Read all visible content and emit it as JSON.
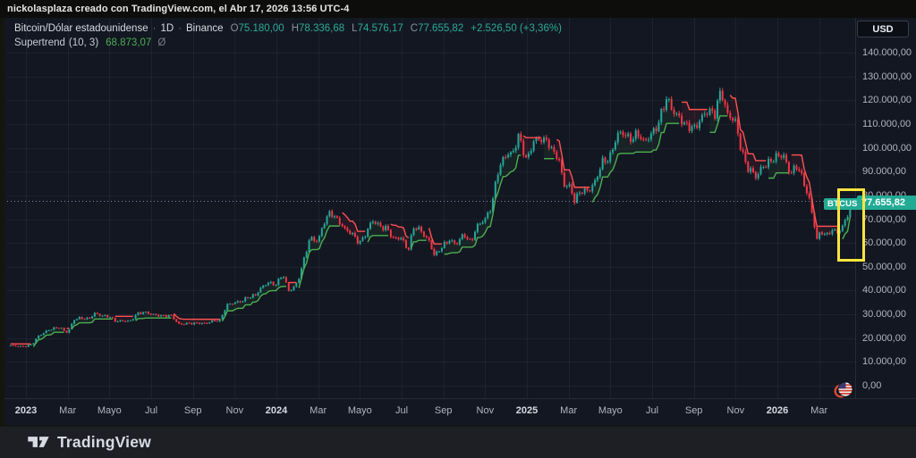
{
  "attribution": {
    "text": "nickolasplaza creado con TradingView.com, el Abr 17, 2026 13:56 UTC-4"
  },
  "legend": {
    "symbol_title": "Bitcoin/Dólar estadounidense",
    "sep": "·",
    "timeframe": "1D",
    "exchange": "Binance",
    "ohlc": {
      "o_label": "O",
      "o": "75.180,00",
      "h_label": "H",
      "h": "78.336,68",
      "l_label": "L",
      "l": "74.576,17",
      "c_label": "C",
      "c": "77.655,82"
    },
    "change": "+2.526,50 (+3,36%)",
    "indicator": {
      "name": "Supertrend",
      "params": "(10, 3)",
      "value": "68.873,07",
      "icon": "Ø"
    }
  },
  "currency_button": {
    "label": "USD"
  },
  "price_badge": {
    "label": "77.655,82"
  },
  "symbol_tag": {
    "label": "BTCUSD"
  },
  "footer": {
    "brand": "TradingView"
  },
  "colors": {
    "chart_bg": "#131722",
    "candle_up": "#26a69a",
    "candle_down": "#f23645",
    "supertrend_up": "#4caf50",
    "supertrend_down": "#ff5252",
    "badge_bg": "#22ab94",
    "highlight": "#ffe53d",
    "grid": "rgba(170,180,200,0.07)",
    "price_line": "rgba(160,150,190,0.85)",
    "axis_text": "#b2b5be"
  },
  "chart_data": {
    "type": "line",
    "subtype": "candlestick-with-supertrend",
    "symbol": "BTCUSD",
    "timeframe": "1D",
    "exchange": "Binance",
    "current_price": 77655.82,
    "supertrend_value": 68873.07,
    "supertrend_state": "up",
    "ylim": [
      0,
      147000
    ],
    "y_ticks": [
      {
        "label": "140.000,00",
        "value": 140000
      },
      {
        "label": "130.000,00",
        "value": 130000
      },
      {
        "label": "120.000,00",
        "value": 120000
      },
      {
        "label": "110.000,00",
        "value": 110000
      },
      {
        "label": "100.000,00",
        "value": 100000
      },
      {
        "label": "90.000,00",
        "value": 90000
      },
      {
        "label": "80.000,00",
        "value": 80000
      },
      {
        "label": "70.000,00",
        "value": 70000
      },
      {
        "label": "60.000,00",
        "value": 60000
      },
      {
        "label": "50.000,00",
        "value": 50000
      },
      {
        "label": "40.000,00",
        "value": 40000
      },
      {
        "label": "30.000,00",
        "value": 30000
      },
      {
        "label": "20.000,00",
        "value": 20000
      },
      {
        "label": "10.000,00",
        "value": 10000
      },
      {
        "label": "0,00",
        "value": 0
      }
    ],
    "x_ticks": [
      {
        "label": "2023",
        "t": 0,
        "bold": true
      },
      {
        "label": "Mar",
        "t": 2,
        "bold": false
      },
      {
        "label": "Mayo",
        "t": 4,
        "bold": false
      },
      {
        "label": "Jul",
        "t": 6,
        "bold": false
      },
      {
        "label": "Sep",
        "t": 8,
        "bold": false
      },
      {
        "label": "Nov",
        "t": 10,
        "bold": false
      },
      {
        "label": "2024",
        "t": 12,
        "bold": true
      },
      {
        "label": "Mar",
        "t": 14,
        "bold": false
      },
      {
        "label": "Mayo",
        "t": 16,
        "bold": false
      },
      {
        "label": "Jul",
        "t": 18,
        "bold": false
      },
      {
        "label": "Sep",
        "t": 20,
        "bold": false
      },
      {
        "label": "Nov",
        "t": 22,
        "bold": false
      },
      {
        "label": "2025",
        "t": 24,
        "bold": true
      },
      {
        "label": "Mar",
        "t": 26,
        "bold": false
      },
      {
        "label": "Mayo",
        "t": 28,
        "bold": false
      },
      {
        "label": "Jul",
        "t": 30,
        "bold": false
      },
      {
        "label": "Sep",
        "t": 32,
        "bold": false
      },
      {
        "label": "Nov",
        "t": 34,
        "bold": false
      },
      {
        "label": "2026",
        "t": 36,
        "bold": true
      },
      {
        "label": "Mar",
        "t": 38,
        "bold": false
      }
    ],
    "price_path": [
      [
        -0.8,
        16800
      ],
      [
        -0.4,
        16650
      ],
      [
        0,
        16600
      ],
      [
        0.3,
        17200
      ],
      [
        0.6,
        21000
      ],
      [
        1,
        23200
      ],
      [
        1.3,
        23800
      ],
      [
        1.6,
        24600
      ],
      [
        2,
        22400
      ],
      [
        2.3,
        27600
      ],
      [
        2.6,
        28300
      ],
      [
        3,
        28400
      ],
      [
        3.3,
        30300
      ],
      [
        3.6,
        29200
      ],
      [
        4,
        29400
      ],
      [
        4.3,
        27100
      ],
      [
        4.6,
        26900
      ],
      [
        5,
        27300
      ],
      [
        5.3,
        30400
      ],
      [
        5.6,
        30600
      ],
      [
        6,
        30200
      ],
      [
        6.3,
        29900
      ],
      [
        6.6,
        29200
      ],
      [
        7,
        29300
      ],
      [
        7.3,
        26100
      ],
      [
        7.6,
        26000
      ],
      [
        8,
        26000
      ],
      [
        8.3,
        26600
      ],
      [
        8.6,
        26200
      ],
      [
        9,
        27000
      ],
      [
        9.3,
        27600
      ],
      [
        9.6,
        34000
      ],
      [
        10,
        34600
      ],
      [
        10.3,
        35400
      ],
      [
        10.6,
        37400
      ],
      [
        11,
        37800
      ],
      [
        11.3,
        41300
      ],
      [
        11.6,
        43800
      ],
      [
        12,
        42300
      ],
      [
        12.3,
        46700
      ],
      [
        12.6,
        40000
      ],
      [
        13,
        43100
      ],
      [
        13.3,
        51800
      ],
      [
        13.6,
        62500
      ],
      [
        14,
        61200
      ],
      [
        14.3,
        68300
      ],
      [
        14.6,
        73100
      ],
      [
        15,
        69600
      ],
      [
        15.3,
        64900
      ],
      [
        15.6,
        63800
      ],
      [
        16,
        60600
      ],
      [
        16.3,
        63900
      ],
      [
        16.6,
        69000
      ],
      [
        17,
        67500
      ],
      [
        17.3,
        66200
      ],
      [
        17.6,
        61000
      ],
      [
        18,
        62700
      ],
      [
        18.3,
        57000
      ],
      [
        18.6,
        66500
      ],
      [
        19,
        64600
      ],
      [
        19.3,
        61400
      ],
      [
        19.6,
        54000
      ],
      [
        20,
        59000
      ],
      [
        20.3,
        62000
      ],
      [
        20.6,
        59100
      ],
      [
        21,
        63300
      ],
      [
        21.3,
        60800
      ],
      [
        21.6,
        67000
      ],
      [
        22,
        69400
      ],
      [
        22.3,
        75600
      ],
      [
        22.6,
        90500
      ],
      [
        23,
        96400
      ],
      [
        23.3,
        97500
      ],
      [
        23.6,
        106100
      ],
      [
        24,
        93400
      ],
      [
        24.3,
        102300
      ],
      [
        24.6,
        104800
      ],
      [
        25,
        102400
      ],
      [
        25.2,
        97700
      ],
      [
        25.5,
        96600
      ],
      [
        25.8,
        84700
      ],
      [
        26,
        84400
      ],
      [
        26.3,
        76900
      ],
      [
        26.6,
        82600
      ],
      [
        27,
        82500
      ],
      [
        27.3,
        85200
      ],
      [
        27.6,
        94200
      ],
      [
        28,
        97000
      ],
      [
        28.3,
        104200
      ],
      [
        28.6,
        106000
      ],
      [
        29,
        104600
      ],
      [
        29.3,
        105700
      ],
      [
        29.6,
        101600
      ],
      [
        30,
        107200
      ],
      [
        30.3,
        110200
      ],
      [
        30.7,
        120100
      ],
      [
        31,
        116500
      ],
      [
        31.3,
        113300
      ],
      [
        31.6,
        108200
      ],
      [
        32,
        108500
      ],
      [
        32.3,
        112600
      ],
      [
        32.6,
        114400
      ],
      [
        33,
        114100
      ],
      [
        33.3,
        126000
      ],
      [
        33.6,
        113500
      ],
      [
        34,
        110100
      ],
      [
        34.3,
        99000
      ],
      [
        34.6,
        91400
      ],
      [
        35,
        86900
      ],
      [
        35.3,
        93000
      ],
      [
        35.6,
        94400
      ],
      [
        36,
        95600
      ],
      [
        36.3,
        97100
      ],
      [
        36.6,
        90100
      ],
      [
        37,
        91600
      ],
      [
        37.2,
        86200
      ],
      [
        37.5,
        80100
      ],
      [
        37.7,
        71300
      ],
      [
        37.9,
        61600
      ],
      [
        38.1,
        64100
      ],
      [
        38.4,
        63000
      ],
      [
        38.6,
        66400
      ],
      [
        38.9,
        64600
      ],
      [
        39.1,
        66100
      ],
      [
        39.3,
        69400
      ],
      [
        39.55,
        77656
      ]
    ]
  }
}
